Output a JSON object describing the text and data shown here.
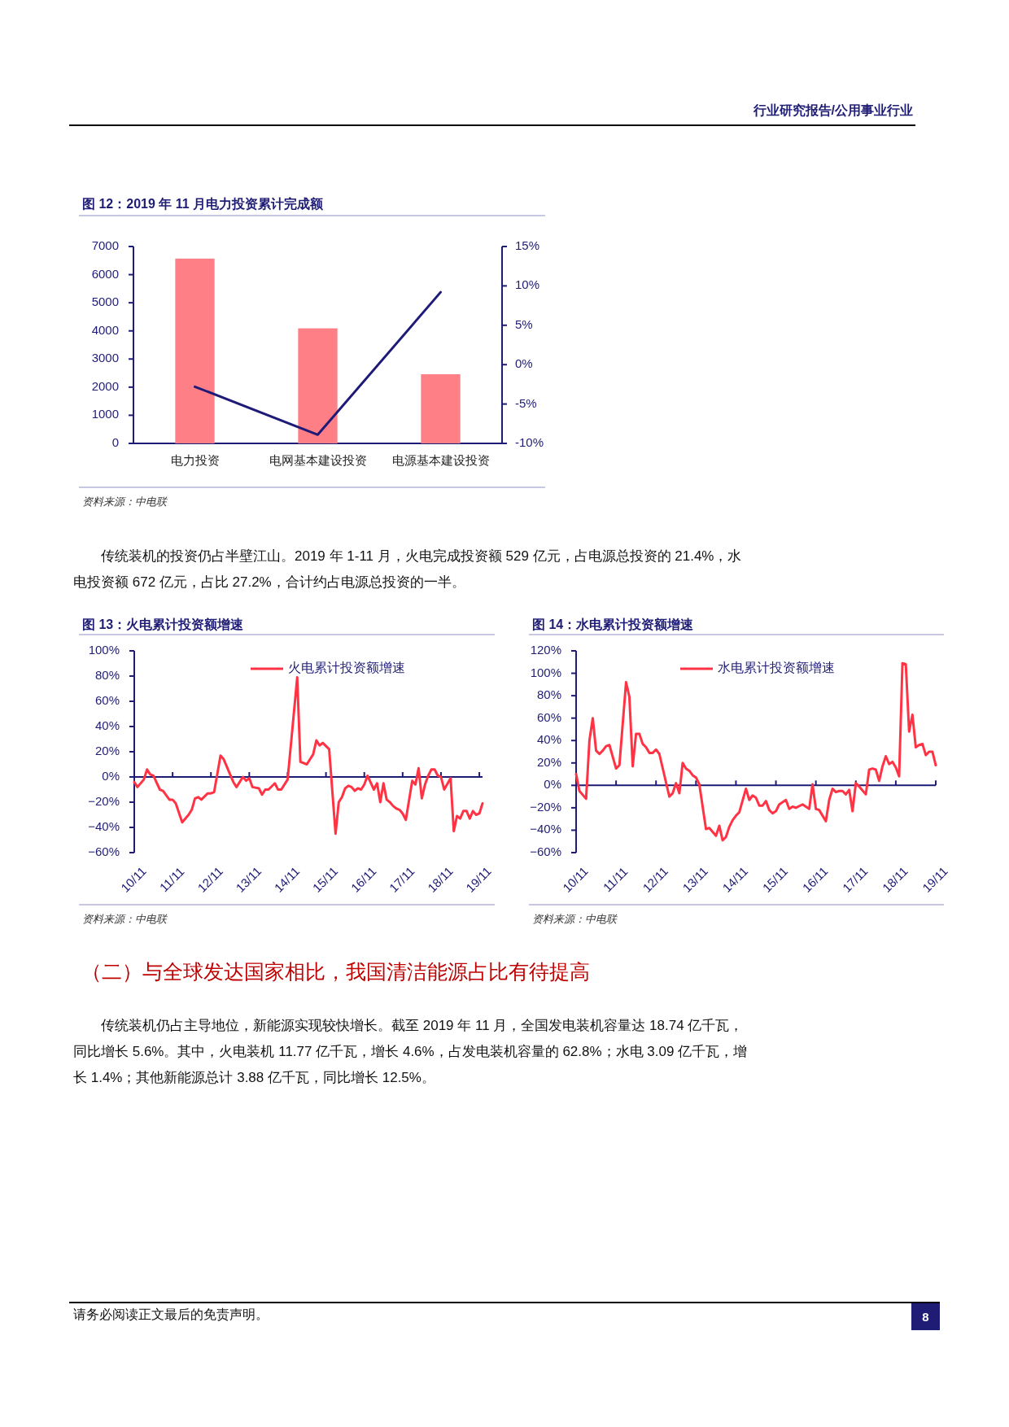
{
  "chart_data": [
    {
      "type": "bar",
      "title": "图 12：2019 年 11 月电力投资累计完成额",
      "categories": [
        "电力投资",
        "电网基本建设投资",
        "电源基本建设投资"
      ],
      "series": [
        {
          "color": "#ff7f86",
          "values": [
            6570,
            4090,
            2460
          ]
        },
        {
          "type": "line",
          "axis": "y2",
          "color": "#1e1a78",
          "values": [
            -2.8,
            -8.9,
            9.2
          ]
        }
      ],
      "ylim": [
        0,
        7000
      ],
      "yticks": [
        0,
        1000,
        2000,
        3000,
        4000,
        5000,
        6000,
        7000
      ],
      "y2lim": [
        -10,
        15
      ],
      "y2ticks": [
        {
          "value": -10,
          "label": "-10%"
        },
        {
          "value": -5,
          "label": "-5%"
        },
        {
          "value": 0,
          "label": "0%"
        },
        {
          "value": 5,
          "label": "5%"
        },
        {
          "value": 10,
          "label": "10%"
        },
        {
          "value": 15,
          "label": "15%"
        }
      ],
      "annotations": [
        "行业研究报告/公用事业行业",
        "资料来源：中电联",
        "传统装机的投资仍占半壁江山。2019 年 1-11 月，火电完成投资额 529 亿元，占电源总投资的 21.4%，水电投资额 672 亿元，占比 27.2%，合计约占电源总投资的一半。"
      ]
    },
    {
      "type": "line",
      "title": "图 13：火电累计投资额增速",
      "x": [
        "2010-11",
        "2010-12",
        "2011-02",
        "2011-03",
        "2011-04",
        "2011-05",
        "2011-07",
        "2011-08",
        "2011-10",
        "2011-11",
        "2011-12",
        "2012-02",
        "2012-04",
        "2012-05",
        "2012-06",
        "2012-07",
        "2012-08",
        "2012-10",
        "2012-11",
        "2012-12",
        "2013-02",
        "2013-03",
        "2013-06",
        "2013-07",
        "2013-09",
        "2013-10",
        "2013-11",
        "2013-12",
        "2014-02",
        "2014-03",
        "2014-04",
        "2014-05",
        "2014-07",
        "2014-08",
        "2014-09",
        "2014-11",
        "2015-02",
        "2015-03",
        "2015-05",
        "2015-07",
        "2015-08",
        "2015-09",
        "2015-10",
        "2015-12",
        "2016-02",
        "2016-03",
        "2016-04",
        "2016-05",
        "2016-06",
        "2016-07",
        "2016-08",
        "2016-09",
        "2016-10",
        "2016-11",
        "2016-12",
        "2017-02",
        "2017-03",
        "2017-04",
        "2017-05",
        "2017-06",
        "2017-07",
        "2017-08",
        "2017-09",
        "2017-10",
        "2017-11",
        "2017-12",
        "2018-02",
        "2018-03",
        "2018-04",
        "2018-05",
        "2018-06",
        "2018-07",
        "2018-08",
        "2018-09",
        "2018-10",
        "2018-11",
        "2018-12",
        "2019-02",
        "2019-03",
        "2019-04",
        "2019-05",
        "2019-06",
        "2019-07",
        "2019-08",
        "2019-09",
        "2019-10",
        "2019-11",
        "2019-12"
      ],
      "series": [
        {
          "name": "火电累计投资额增速",
          "color": "#ff3344",
          "values": [
            -4,
            -8,
            -2,
            6,
            2,
            1,
            -10,
            -11,
            -18,
            -18,
            -21,
            -36,
            -30,
            -26,
            -17,
            -16,
            -18,
            -13,
            -13,
            -12,
            17,
            14,
            -4,
            -8,
            0,
            -3,
            -1,
            -8,
            -9,
            -14,
            -10,
            -10,
            -5,
            -10,
            -10,
            -2,
            79,
            12,
            10,
            18,
            29,
            25,
            27,
            22,
            -45,
            -20,
            -16,
            -9,
            -7,
            -8,
            -11,
            -9,
            -10,
            -6,
            1,
            -10,
            -5,
            -20,
            -5,
            -18,
            -20,
            -23,
            -25,
            -26,
            -29,
            -34,
            -3,
            -6,
            7,
            -17,
            -6,
            1,
            6,
            6,
            1,
            0,
            -10,
            -1,
            -43,
            -31,
            -33,
            -27,
            -27,
            -33,
            -27,
            -30,
            -29,
            -21
          ]
        }
      ],
      "xlim": [
        "2010-11",
        "2019-12"
      ],
      "xticks": [
        {
          "value": "2010-11",
          "label": "10/11"
        },
        {
          "value": "2011-11",
          "label": "11/11"
        },
        {
          "value": "2012-11",
          "label": "12/11"
        },
        {
          "value": "2013-11",
          "label": "13/11"
        },
        {
          "value": "2014-11",
          "label": "14/11"
        },
        {
          "value": "2015-11",
          "label": "15/11"
        },
        {
          "value": "2016-11",
          "label": "16/11"
        },
        {
          "value": "2017-11",
          "label": "17/11"
        },
        {
          "value": "2018-11",
          "label": "18/11"
        },
        {
          "value": "2019-11",
          "label": "19/11"
        }
      ],
      "ylim": [
        -60,
        100
      ],
      "yticks": [
        {
          "value": -60,
          "label": "−60%"
        },
        {
          "value": -40,
          "label": "−40%"
        },
        {
          "value": -20,
          "label": "−20%"
        },
        {
          "value": 0,
          "label": "0%"
        },
        {
          "value": 20,
          "label": "20%"
        },
        {
          "value": 40,
          "label": "40%"
        },
        {
          "value": 60,
          "label": "60%"
        },
        {
          "value": 80,
          "label": "80%"
        },
        {
          "value": 100,
          "label": "100%"
        }
      ],
      "ref_lines": [
        {
          "axis": "y",
          "value": 0,
          "color": "#1f1c75"
        }
      ],
      "legend": "top right",
      "annotations": [
        "资料来源：中电联"
      ]
    },
    {
      "type": "line",
      "title": "图 14：水电累计投资额增速",
      "x": [
        "2010-11",
        "2010-12",
        "2011-02",
        "2011-03",
        "2011-04",
        "2011-05",
        "2011-06",
        "2011-07",
        "2011-08",
        "2011-09",
        "2011-11",
        "2011-12",
        "2012-02",
        "2012-03",
        "2012-04",
        "2012-05",
        "2012-06",
        "2012-07",
        "2012-08",
        "2012-09",
        "2012-10",
        "2012-11",
        "2012-12",
        "2013-03",
        "2013-04",
        "2013-05",
        "2013-06",
        "2013-07",
        "2013-08",
        "2013-09",
        "2013-10",
        "2013-11",
        "2013-12",
        "2014-02",
        "2014-03",
        "2014-05",
        "2014-06",
        "2014-07",
        "2014-08",
        "2014-09",
        "2014-10",
        "2014-11",
        "2014-12",
        "2015-02",
        "2015-03",
        "2015-04",
        "2015-05",
        "2015-06",
        "2015-07",
        "2015-08",
        "2015-09",
        "2015-10",
        "2015-11",
        "2015-12",
        "2016-02",
        "2016-03",
        "2016-04",
        "2016-05",
        "2016-07",
        "2016-09",
        "2016-10",
        "2016-11",
        "2016-12",
        "2017-02",
        "2017-03",
        "2017-04",
        "2017-05",
        "2017-06",
        "2017-07",
        "2017-08",
        "2017-09",
        "2017-10",
        "2017-11",
        "2017-12",
        "2018-02",
        "2018-03",
        "2018-04",
        "2018-05",
        "2018-06",
        "2018-07",
        "2018-08",
        "2018-09",
        "2018-10",
        "2018-11",
        "2018-12",
        "2019-01",
        "2019-02",
        "2019-03",
        "2019-04",
        "2019-05",
        "2019-06",
        "2019-07",
        "2019-08",
        "2019-09",
        "2019-10",
        "2019-11"
      ],
      "series": [
        {
          "name": "水电累计投资额增速",
          "color": "#ff3344",
          "values": [
            10,
            -5,
            -12,
            40,
            60,
            31,
            28,
            31,
            35,
            36,
            15,
            18,
            92,
            79,
            17,
            46,
            46,
            37,
            34,
            29,
            29,
            32,
            28,
            -10,
            -7,
            2,
            -7,
            20,
            15,
            13,
            9,
            7,
            1,
            -39,
            -38,
            -45,
            -36,
            -49,
            -46,
            -37,
            -31,
            -27,
            -24,
            -3,
            -13,
            -9,
            -11,
            -18,
            -18,
            -14,
            -22,
            -25,
            -23,
            -17,
            -13,
            -21,
            -19,
            -20,
            -17,
            -21,
            1,
            -21,
            -22,
            -32,
            -13,
            -3,
            -6,
            -5,
            -5,
            -8,
            -4,
            -23,
            2,
            -1,
            -8,
            14,
            15,
            14,
            4,
            17,
            26,
            19,
            21,
            16,
            8,
            109,
            108,
            48,
            63,
            34,
            36,
            37,
            27,
            30,
            30,
            18
          ]
        }
      ],
      "xlim": [
        "2010-11",
        "2019-11"
      ],
      "xticks": [
        {
          "value": "2010-11",
          "label": "10/11"
        },
        {
          "value": "2011-11",
          "label": "11/11"
        },
        {
          "value": "2012-11",
          "label": "12/11"
        },
        {
          "value": "2013-11",
          "label": "13/11"
        },
        {
          "value": "2014-11",
          "label": "14/11"
        },
        {
          "value": "2015-11",
          "label": "15/11"
        },
        {
          "value": "2016-11",
          "label": "16/11"
        },
        {
          "value": "2017-11",
          "label": "17/11"
        },
        {
          "value": "2018-11",
          "label": "18/11"
        },
        {
          "value": "2019-11",
          "label": "19/11"
        }
      ],
      "ylim": [
        -60,
        120
      ],
      "yticks": [
        {
          "value": -60,
          "label": "−60%"
        },
        {
          "value": -40,
          "label": "−40%"
        },
        {
          "value": -20,
          "label": "−20%"
        },
        {
          "value": 0,
          "label": "0%"
        },
        {
          "value": 20,
          "label": "20%"
        },
        {
          "value": 40,
          "label": "40%"
        },
        {
          "value": 60,
          "label": "60%"
        },
        {
          "value": 80,
          "label": "80%"
        },
        {
          "value": 100,
          "label": "100%"
        },
        {
          "value": 120,
          "label": "120%"
        }
      ],
      "ref_lines": [
        {
          "axis": "y",
          "value": 0,
          "color": "#1f1c75"
        }
      ],
      "legend": "top right",
      "annotations": [
        "资料来源：中电联",
        "（二）与全球发达国家相比，我国清洁能源占比有待提高",
        "传统装机仍占主导地位，新能源实现较快增长。截至 2019 年 11 月，全国发电装机容量达 18.74 亿千瓦，同比增长 5.6%。其中，火电装机 11.77 亿千瓦，增长 4.6%，占发电装机容量的 62.8%；水电 3.09 亿千瓦，增长 1.4%；其他新能源总计 3.88 亿千瓦，同比增长 12.5%。",
        "请务必阅读正文最后的免责声明。",
        "8"
      ]
    }
  ]
}
